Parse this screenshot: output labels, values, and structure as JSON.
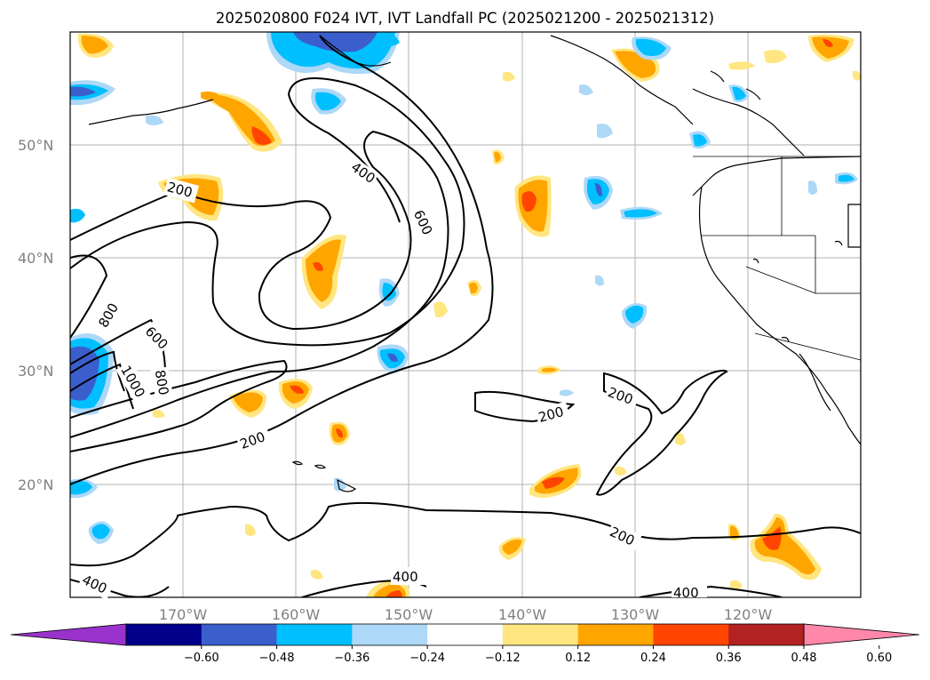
{
  "title": "2025020800 F024 IVT, IVT Landfall PC (2025021200 - 2025021312)",
  "lat_labels": [
    "50°N",
    "40°N",
    "30°N",
    "20°N"
  ],
  "lon_labels": [
    "170°W",
    "160°W",
    "150°W",
    "140°W",
    "130°W",
    "120°W"
  ],
  "contour_labels": [
    "400",
    "600",
    "200",
    "800",
    "600",
    "1000",
    "800",
    "200",
    "200",
    "200",
    "200",
    "400",
    "400",
    "400"
  ],
  "colorbar": {
    "ticks": [
      "−0.60",
      "−0.48",
      "−0.36",
      "−0.24",
      "−0.12",
      "0.12",
      "0.24",
      "0.36",
      "0.48",
      "0.60"
    ],
    "colors": [
      "#9933cc",
      "#00008b",
      "#3a5fcd",
      "#00bfff",
      "#add8f7",
      "#ffffff",
      "#ffe680",
      "#ffa500",
      "#ff4500",
      "#b22222",
      "#ff88aa"
    ]
  },
  "map": {
    "lat_range": [
      "~11°N",
      "60°N"
    ],
    "lon_range": [
      "180°W",
      "110°W"
    ]
  }
}
